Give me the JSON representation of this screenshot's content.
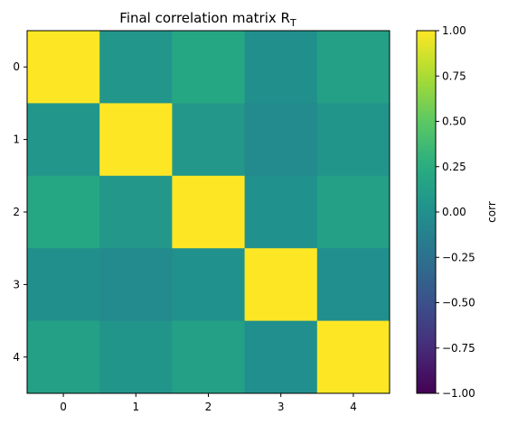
{
  "chart_data": {
    "type": "heatmap",
    "title": "Final correlation matrix R",
    "title_subscript": "T",
    "x_categories": [
      "0",
      "1",
      "2",
      "3",
      "4"
    ],
    "y_categories": [
      "0",
      "1",
      "2",
      "3",
      "4"
    ],
    "values": [
      [
        1.0,
        0.05,
        0.2,
        0.0,
        0.14
      ],
      [
        0.05,
        1.0,
        0.07,
        -0.05,
        0.04
      ],
      [
        0.2,
        0.07,
        1.0,
        0.01,
        0.14
      ],
      [
        0.0,
        -0.05,
        0.01,
        1.0,
        -0.01
      ],
      [
        0.14,
        0.04,
        0.14,
        -0.01,
        1.0
      ]
    ],
    "colormap": "viridis",
    "vmin": -1.0,
    "vmax": 1.0,
    "colorbar": {
      "label": "corr",
      "ticks": [
        1.0,
        0.75,
        0.5,
        0.25,
        0.0,
        -0.25,
        -0.5,
        -0.75,
        -1.0
      ],
      "tick_labels": [
        "1.00",
        "0.75",
        "0.50",
        "0.25",
        "0.00",
        "−0.25",
        "−0.50",
        "−0.75",
        "−1.00"
      ]
    }
  }
}
